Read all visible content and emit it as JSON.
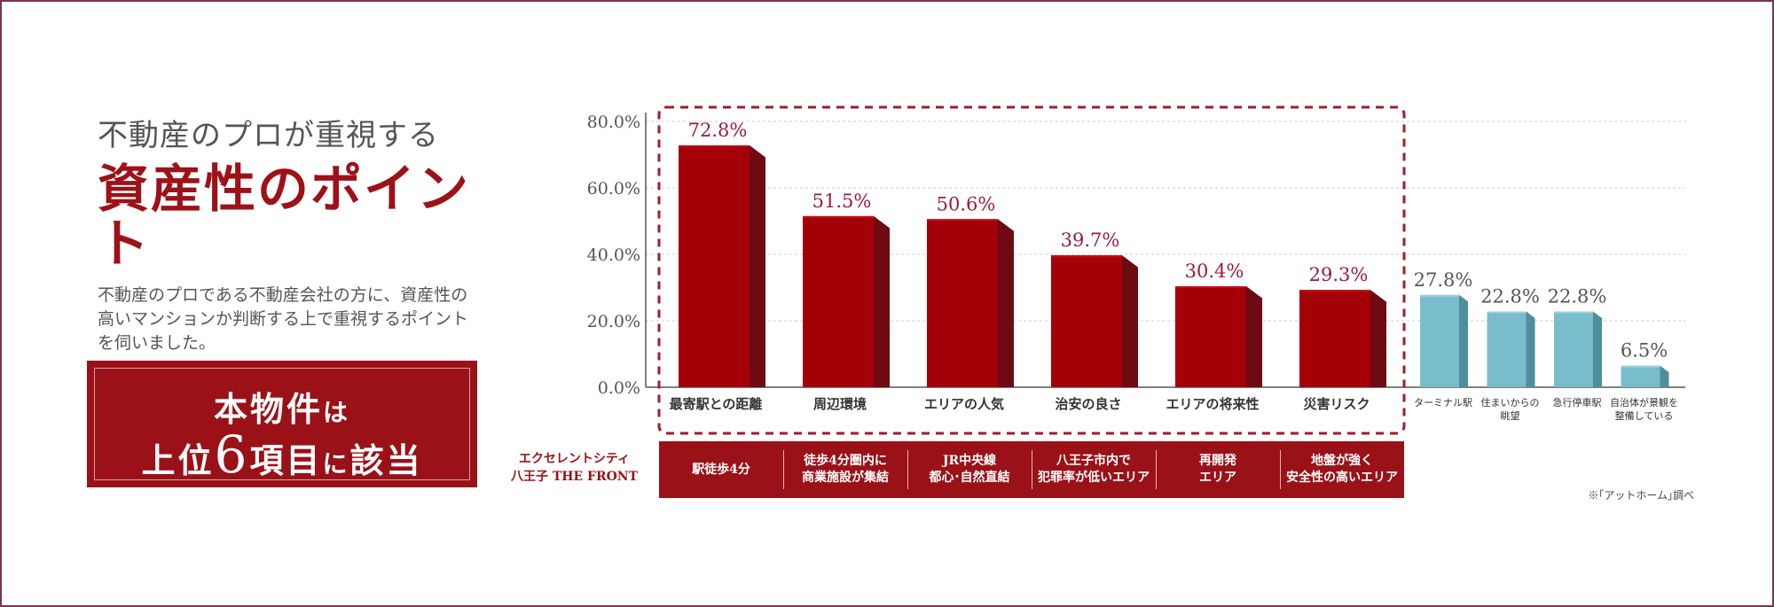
{
  "left_panel": {
    "subtitle": "不動産のプロが重視する",
    "title": "資産性のポイント",
    "description": "不動産のプロである不動産会社の方に、資産性の高いマンションか判断する上で重視するポイントを伺いました。"
  },
  "highlight": {
    "line1_main": "本物件",
    "line1_small": "は",
    "line2_pre": "上位",
    "line2_number": "6",
    "line2_mid": "項目",
    "line2_small": "に",
    "line2_post": "該当"
  },
  "property_name": "エクセレントシティ\n八王子 THE FRONT",
  "features": [
    "駅徒歩4分",
    "徒歩4分圏内に\n商業施設が集結",
    "JR中央線\n都心･自然直結",
    "八王子市内で\n犯罪率が低いエリア",
    "再開発\nエリア",
    "地盤が強く\n安全性の高いエリア"
  ],
  "source_note": "※｢アットホーム｣調べ",
  "colors": {
    "red": "#a30008",
    "red_side": "#6e0a12",
    "red_top": "#c2101a",
    "red_label": "#9b1a40",
    "blue": "#79bccb",
    "blue_side": "#4f8e9c",
    "blue_top": "#9fd2dd",
    "blue_label": "#555555",
    "grid": "#cccccc",
    "dash_box": "#a31b2b"
  },
  "chart_data": {
    "type": "bar",
    "categories": [
      "最寄駅との距離",
      "周辺環境",
      "エリアの人気",
      "治安の良さ",
      "エリアの将来性",
      "災害リスク",
      "ターミナル駅",
      "住まいからの\n眺望",
      "急行停車駅",
      "自治体が景観を\n整備している"
    ],
    "values": [
      72.8,
      51.5,
      50.6,
      39.7,
      30.4,
      29.3,
      27.8,
      22.8,
      22.8,
      6.5
    ],
    "value_labels": [
      "72.8%",
      "51.5%",
      "50.6%",
      "39.7%",
      "30.4%",
      "29.3%",
      "27.8%",
      "22.8%",
      "22.8%",
      "6.5%"
    ],
    "highlighted_count": 6,
    "y_ticks": [
      "0.0%",
      "20.0%",
      "40.0%",
      "60.0%",
      "80.0%"
    ],
    "ylim": [
      0,
      80
    ],
    "grid": true,
    "title": "",
    "xlabel": "",
    "ylabel": ""
  }
}
